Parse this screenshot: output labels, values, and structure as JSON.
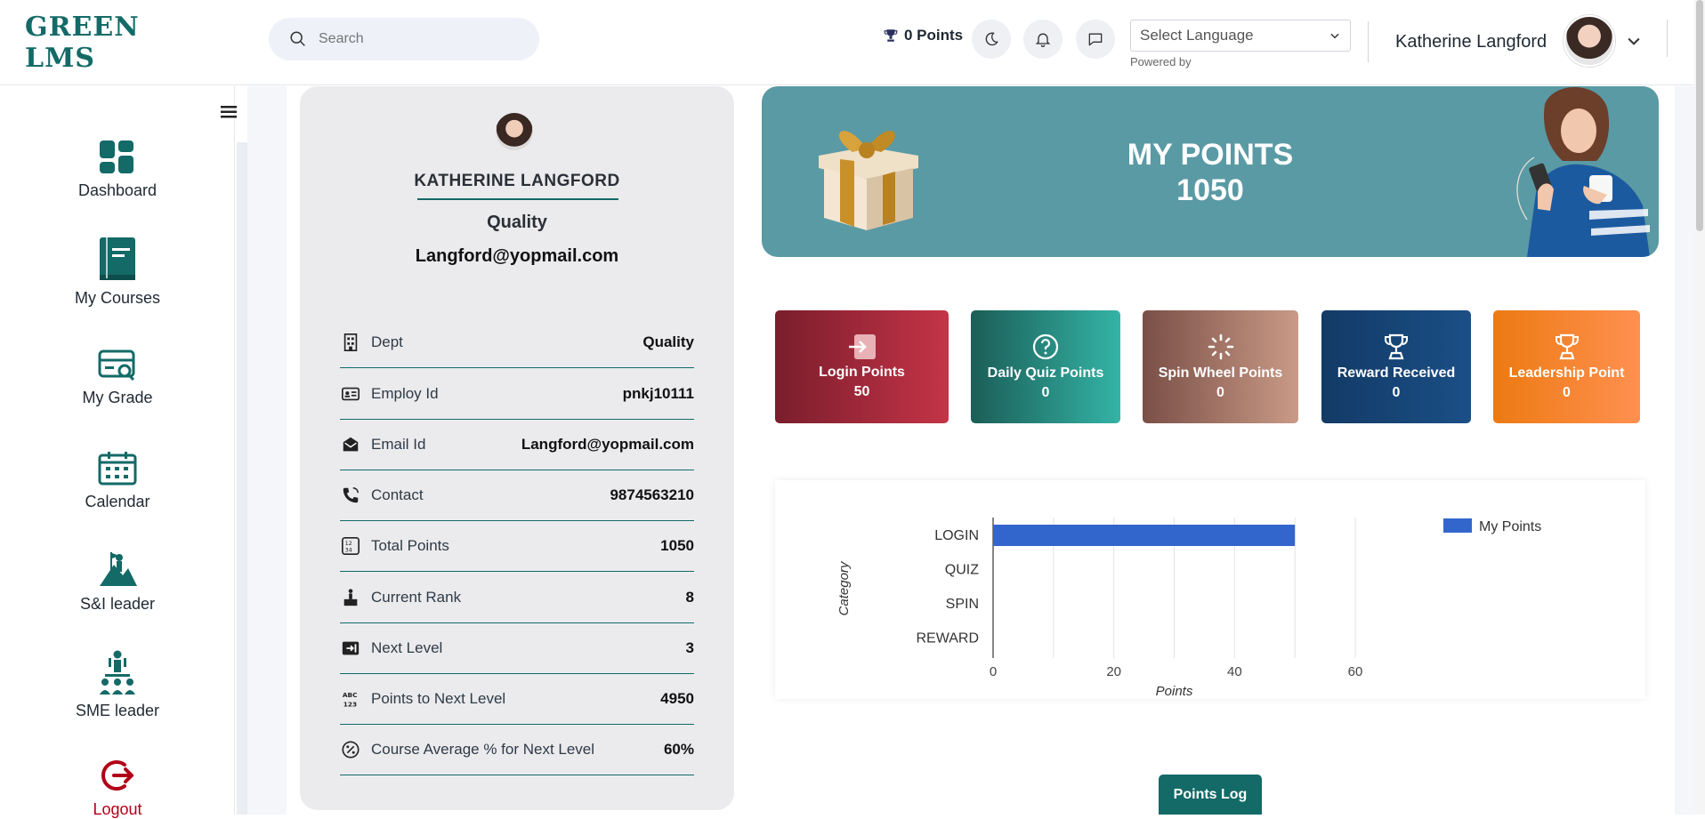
{
  "header": {
    "logo": "GREEN LMS",
    "search_placeholder": "Search",
    "points": "0 Points",
    "language_select": "Select Language",
    "powered_by": "Powered by",
    "user_name": "Katherine Langford"
  },
  "sidebar": {
    "items": [
      {
        "label": "Dashboard",
        "icon": "dashboard-grid-icon"
      },
      {
        "label": "My Courses",
        "icon": "book-icon"
      },
      {
        "label": "My Grade",
        "icon": "grade-card-icon"
      },
      {
        "label": "Calendar",
        "icon": "calendar-icon"
      },
      {
        "label": "S&I leader",
        "icon": "summit-leader-icon"
      },
      {
        "label": "SME leader",
        "icon": "team-leader-icon"
      },
      {
        "label": "Logout",
        "icon": "logout-icon"
      }
    ]
  },
  "profile": {
    "name": "KATHERINE LANGFORD",
    "dept": "Quality",
    "email": "Langford@yopmail.com",
    "rows": [
      {
        "label": "Dept",
        "value": "Quality",
        "icon": "building-icon"
      },
      {
        "label": "Employ Id",
        "value": "pnkj10111",
        "icon": "id-card-icon"
      },
      {
        "label": "Email Id",
        "value": "Langford@yopmail.com",
        "icon": "envelope-icon"
      },
      {
        "label": "Contact",
        "value": "9874563210",
        "icon": "phone-icon"
      },
      {
        "label": "Total Points",
        "value": "1050",
        "icon": "numbers-icon"
      },
      {
        "label": "Current Rank",
        "value": "8",
        "icon": "podium-icon"
      },
      {
        "label": "Next Level",
        "value": "3",
        "icon": "next-level-icon"
      },
      {
        "label": "Points to Next Level",
        "value": "4950",
        "icon": "abc-123-icon"
      },
      {
        "label": "Course Average % for Next Level",
        "value": "60%",
        "icon": "percent-icon"
      }
    ]
  },
  "banner": {
    "title": "MY POINTS",
    "value": "1050"
  },
  "tiles": [
    {
      "label": "Login Points",
      "value": "50",
      "colors": [
        "#7a1d2c",
        "#c43447"
      ],
      "icon": "login-icon"
    },
    {
      "label": "Daily Quiz Points",
      "value": "0",
      "colors": [
        "#1b5e57",
        "#34b3a6"
      ],
      "icon": "question-icon"
    },
    {
      "label": "Spin Wheel Points",
      "value": "0",
      "colors": [
        "#7a4f47",
        "#c99a86"
      ],
      "icon": "spinner-icon"
    },
    {
      "label": "Reward Received",
      "value": "0",
      "colors": [
        "#123a66",
        "#1b4f86"
      ],
      "icon": "trophy-icon"
    },
    {
      "label": "Leadership Point",
      "value": "0",
      "colors": [
        "#ec7a12",
        "#ff9050"
      ],
      "icon": "trophy-icon"
    }
  ],
  "chart_data": {
    "type": "bar",
    "orientation": "horizontal",
    "categories": [
      "LOGIN",
      "QUIZ",
      "SPIN",
      "REWARD"
    ],
    "series": [
      {
        "name": "My Points",
        "values": [
          50,
          0,
          0,
          0
        ],
        "color": "#3366cc"
      }
    ],
    "xlabel": "Points",
    "ylabel": "Category",
    "xlim": [
      0,
      60
    ],
    "xticks": [
      0,
      20,
      40,
      60
    ],
    "grid": true,
    "legend": "right"
  },
  "buttons": {
    "points_log": "Points Log"
  }
}
